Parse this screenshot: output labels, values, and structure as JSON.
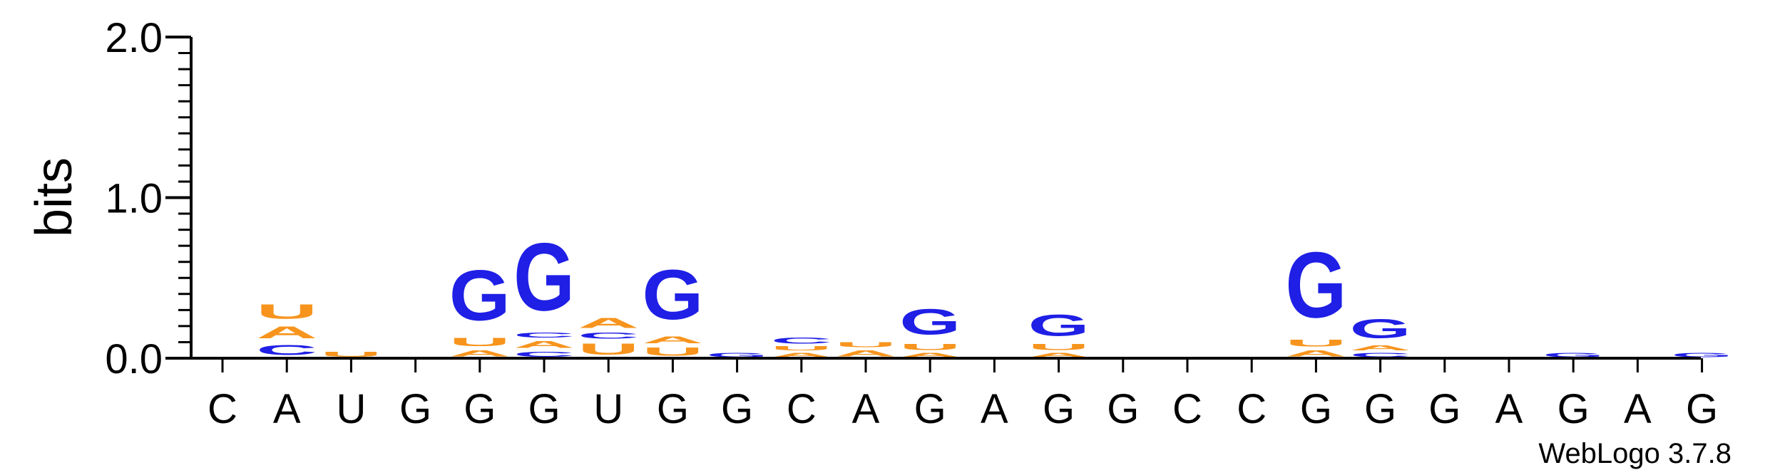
{
  "credit": "WebLogo 3.7.8",
  "chart_data": {
    "type": "sequence-logo",
    "ylabel": "bits",
    "ylim": [
      0,
      2.0
    ],
    "yticks": [
      "0.0",
      "1.0",
      "2.0"
    ],
    "y_minor_step": 0.1,
    "colors": {
      "A": "#f7941d",
      "U": "#f7941d",
      "C": "#1f1fe6",
      "G": "#1f1fe6"
    },
    "columns": [
      {
        "label": "C",
        "stack": []
      },
      {
        "label": "A",
        "stack": [
          [
            "C",
            0.1
          ],
          [
            "A",
            0.12
          ],
          [
            "U",
            0.14
          ]
        ]
      },
      {
        "label": "U",
        "stack": [
          [
            "U",
            0.05
          ]
        ]
      },
      {
        "label": "G",
        "stack": []
      },
      {
        "label": "G",
        "stack": [
          [
            "A",
            0.06
          ],
          [
            "U",
            0.08
          ],
          [
            "G",
            0.5
          ]
        ]
      },
      {
        "label": "G",
        "stack": [
          [
            "C",
            0.05
          ],
          [
            "A",
            0.07
          ],
          [
            "C",
            0.05
          ],
          [
            "G",
            0.67
          ]
        ]
      },
      {
        "label": "U",
        "stack": [
          [
            "U",
            0.11
          ],
          [
            "C",
            0.06
          ],
          [
            "A",
            0.1
          ]
        ]
      },
      {
        "label": "G",
        "stack": [
          [
            "U",
            0.08
          ],
          [
            "A",
            0.07
          ],
          [
            "G",
            0.49
          ]
        ]
      },
      {
        "label": "G",
        "stack": [
          [
            "G",
            0.04
          ]
        ]
      },
      {
        "label": "C",
        "stack": [
          [
            "A",
            0.04
          ],
          [
            "U",
            0.04
          ],
          [
            "C",
            0.06
          ]
        ]
      },
      {
        "label": "A",
        "stack": [
          [
            "A",
            0.06
          ],
          [
            "U",
            0.05
          ]
        ]
      },
      {
        "label": "G",
        "stack": [
          [
            "A",
            0.04
          ],
          [
            "U",
            0.06
          ],
          [
            "G",
            0.25
          ]
        ]
      },
      {
        "label": "A",
        "stack": []
      },
      {
        "label": "G",
        "stack": [
          [
            "A",
            0.04
          ],
          [
            "U",
            0.06
          ],
          [
            "G",
            0.21
          ]
        ]
      },
      {
        "label": "G",
        "stack": []
      },
      {
        "label": "C",
        "stack": []
      },
      {
        "label": "C",
        "stack": []
      },
      {
        "label": "G",
        "stack": [
          [
            "A",
            0.06
          ],
          [
            "U",
            0.07
          ],
          [
            "G",
            0.65
          ]
        ]
      },
      {
        "label": "G",
        "stack": [
          [
            "C",
            0.04
          ],
          [
            "A",
            0.05
          ],
          [
            "G",
            0.19
          ]
        ]
      },
      {
        "label": "G",
        "stack": []
      },
      {
        "label": "A",
        "stack": []
      },
      {
        "label": "G",
        "stack": [
          [
            "G",
            0.04
          ]
        ]
      },
      {
        "label": "A",
        "stack": []
      },
      {
        "label": "G",
        "stack": [
          [
            "G",
            0.04
          ]
        ]
      }
    ]
  }
}
